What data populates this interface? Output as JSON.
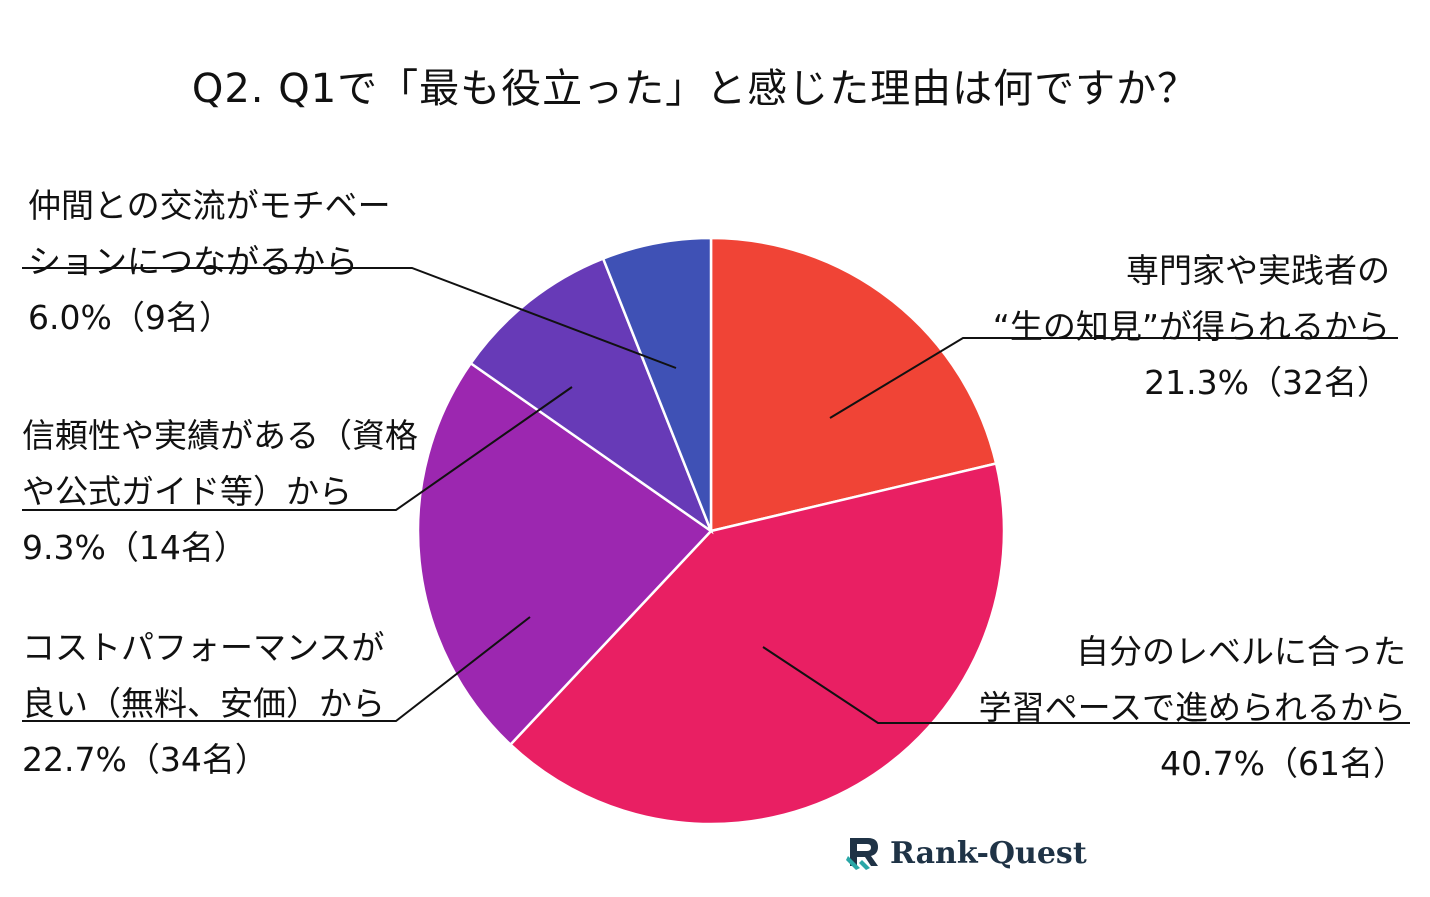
{
  "title": "Q2. Q1で「最も役立った」と感じた理由は何ですか？",
  "chart_data": {
    "type": "pie",
    "title": "Q2. Q1で「最も役立った」と感じた理由は何ですか？",
    "slices": [
      {
        "label_lines": [
          "専門家や実践者の",
          "“生の知見”が得られるから"
        ],
        "value": 21.3,
        "count": 32,
        "value_text": "21.3%（32名）",
        "color": "#f04436"
      },
      {
        "label_lines": [
          "自分のレベルに合った",
          "学習ペースで進められるから"
        ],
        "value": 40.7,
        "count": 61,
        "value_text": "40.7%（61名）",
        "color": "#e91f63"
      },
      {
        "label_lines": [
          "コストパフォーマンスが",
          "良い（無料、安価）から"
        ],
        "value": 22.7,
        "count": 34,
        "value_text": "22.7%（34名）",
        "color": "#9c27b0"
      },
      {
        "label_lines": [
          "信頼性や実績がある（資格",
          "や公式ガイド等）から"
        ],
        "value": 9.3,
        "count": 14,
        "value_text": "9.3%（14名）",
        "color": "#673ab7"
      },
      {
        "label_lines": [
          "仲間との交流がモチベー",
          "ションにつながるから"
        ],
        "value": 6.0,
        "count": 9,
        "value_text": "6.0%（9名）",
        "color": "#3f51b5"
      }
    ]
  },
  "logo": {
    "text": "Rank-Quest",
    "colors": {
      "teal": "#2aa7a7",
      "navy": "#1f3346"
    }
  }
}
